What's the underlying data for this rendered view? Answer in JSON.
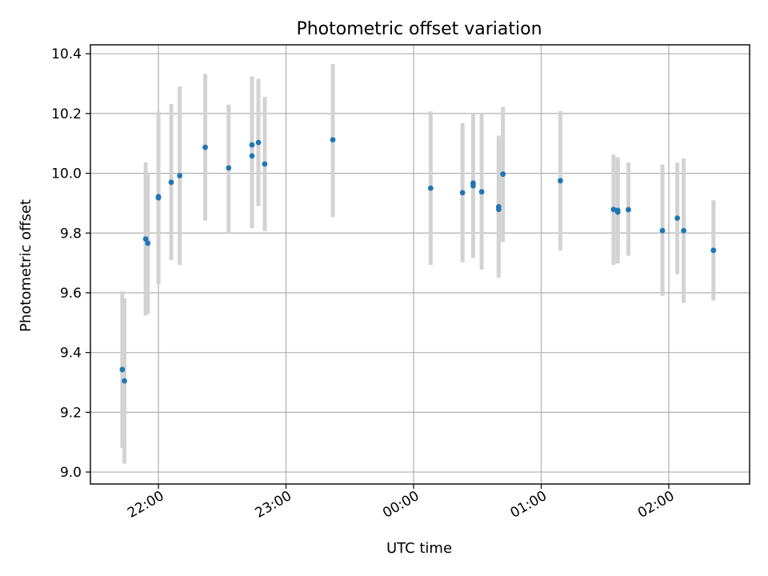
{
  "chart_data": {
    "type": "scatter",
    "title": "Photometric offset variation",
    "xlabel": "UTC time",
    "ylabel": "Photometric offset",
    "x_axis": {
      "kind": "time",
      "range": [
        "21:28",
        "02:38"
      ],
      "ticks": [
        {
          "time": "22:00",
          "label": "22:00"
        },
        {
          "time": "23:00",
          "label": "23:00"
        },
        {
          "time": "00:00",
          "label": "00:00"
        },
        {
          "time": "01:00",
          "label": "01:00"
        },
        {
          "time": "02:00",
          "label": "02:00"
        }
      ]
    },
    "ylim": [
      8.96,
      10.43
    ],
    "yticks": [
      9.0,
      9.2,
      9.4,
      9.6,
      9.8,
      10.0,
      10.2,
      10.4
    ],
    "ytick_labels": [
      "9.0",
      "9.2",
      "9.4",
      "9.6",
      "9.8",
      "10.0",
      "10.2",
      "10.4"
    ],
    "grid": true,
    "marker_color": "#1f77b4",
    "errorbar_color": "#d3d3d3",
    "points": [
      {
        "time": "21:43",
        "y": 9.343,
        "yerr_low": 9.08,
        "yerr_high": 9.605
      },
      {
        "time": "21:44",
        "y": 9.305,
        "yerr_low": 9.028,
        "yerr_high": 9.582
      },
      {
        "time": "21:54",
        "y": 9.78,
        "yerr_low": 9.524,
        "yerr_high": 10.036
      },
      {
        "time": "21:55",
        "y": 9.766,
        "yerr_low": 9.53,
        "yerr_high": 10.0
      },
      {
        "time": "22:00",
        "y": 9.918,
        "yerr_low": 9.63,
        "yerr_high": 10.206
      },
      {
        "time": "22:00",
        "y": 9.922,
        "yerr_low": 9.636,
        "yerr_high": 10.2
      },
      {
        "time": "22:06",
        "y": 9.97,
        "yerr_low": 9.71,
        "yerr_high": 10.232
      },
      {
        "time": "22:10",
        "y": 9.992,
        "yerr_low": 9.693,
        "yerr_high": 10.29
      },
      {
        "time": "22:22",
        "y": 10.087,
        "yerr_low": 9.842,
        "yerr_high": 10.333
      },
      {
        "time": "22:33",
        "y": 10.018,
        "yerr_low": 9.8,
        "yerr_high": 10.23
      },
      {
        "time": "22:44",
        "y": 10.095,
        "yerr_low": 9.866,
        "yerr_high": 10.324
      },
      {
        "time": "22:44",
        "y": 10.058,
        "yerr_low": 9.816,
        "yerr_high": 10.3
      },
      {
        "time": "22:47",
        "y": 10.103,
        "yerr_low": 9.89,
        "yerr_high": 10.316
      },
      {
        "time": "22:50",
        "y": 10.031,
        "yerr_low": 9.806,
        "yerr_high": 10.256
      },
      {
        "time": "23:22",
        "y": 10.112,
        "yerr_low": 9.854,
        "yerr_high": 10.366
      },
      {
        "time": "00:08",
        "y": 9.95,
        "yerr_low": 9.693,
        "yerr_high": 10.207
      },
      {
        "time": "00:23",
        "y": 9.935,
        "yerr_low": 9.702,
        "yerr_high": 10.168
      },
      {
        "time": "00:28",
        "y": 9.967,
        "yerr_low": 9.735,
        "yerr_high": 10.2
      },
      {
        "time": "00:28",
        "y": 9.958,
        "yerr_low": 9.716,
        "yerr_high": 10.17
      },
      {
        "time": "00:32",
        "y": 9.938,
        "yerr_low": 9.678,
        "yerr_high": 10.2
      },
      {
        "time": "00:40",
        "y": 9.888,
        "yerr_low": 9.65,
        "yerr_high": 10.126
      },
      {
        "time": "00:40",
        "y": 9.879,
        "yerr_low": 9.66,
        "yerr_high": 10.11
      },
      {
        "time": "00:42",
        "y": 9.997,
        "yerr_low": 9.77,
        "yerr_high": 10.222
      },
      {
        "time": "01:09",
        "y": 9.975,
        "yerr_low": 9.742,
        "yerr_high": 10.208
      },
      {
        "time": "01:34",
        "y": 9.879,
        "yerr_low": 9.694,
        "yerr_high": 10.062
      },
      {
        "time": "01:36",
        "y": 9.876,
        "yerr_low": 9.698,
        "yerr_high": 10.054
      },
      {
        "time": "01:36",
        "y": 9.87,
        "yerr_low": 9.706,
        "yerr_high": 10.036
      },
      {
        "time": "01:41",
        "y": 9.878,
        "yerr_low": 9.724,
        "yerr_high": 10.036
      },
      {
        "time": "01:57",
        "y": 9.808,
        "yerr_low": 9.59,
        "yerr_high": 10.03
      },
      {
        "time": "02:04",
        "y": 9.85,
        "yerr_low": 9.662,
        "yerr_high": 10.036
      },
      {
        "time": "02:07",
        "y": 9.808,
        "yerr_low": 9.566,
        "yerr_high": 10.05
      },
      {
        "time": "02:21",
        "y": 9.742,
        "yerr_low": 9.574,
        "yerr_high": 9.91
      }
    ]
  }
}
